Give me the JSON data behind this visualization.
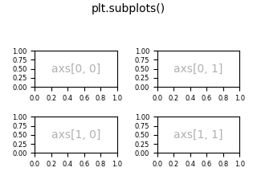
{
  "title": "plt.subplots()",
  "title_fontsize": 10,
  "nrows": 2,
  "ncols": 2,
  "labels": [
    [
      "axs[0, 0]",
      "axs[0, 1]"
    ],
    [
      "axs[1, 0]",
      "axs[1, 1]"
    ]
  ],
  "label_color": "#b0b0b0",
  "label_fontsize": 10,
  "xlim": [
    0.0,
    1.0
  ],
  "ylim": [
    0.0,
    1.0
  ],
  "xticks": [
    0.0,
    0.2,
    0.4,
    0.6,
    0.8,
    1.0
  ],
  "yticks": [
    0.0,
    0.25,
    0.5,
    0.75,
    1.0
  ],
  "background_color": "#ffffff",
  "tick_labelsize": 6
}
